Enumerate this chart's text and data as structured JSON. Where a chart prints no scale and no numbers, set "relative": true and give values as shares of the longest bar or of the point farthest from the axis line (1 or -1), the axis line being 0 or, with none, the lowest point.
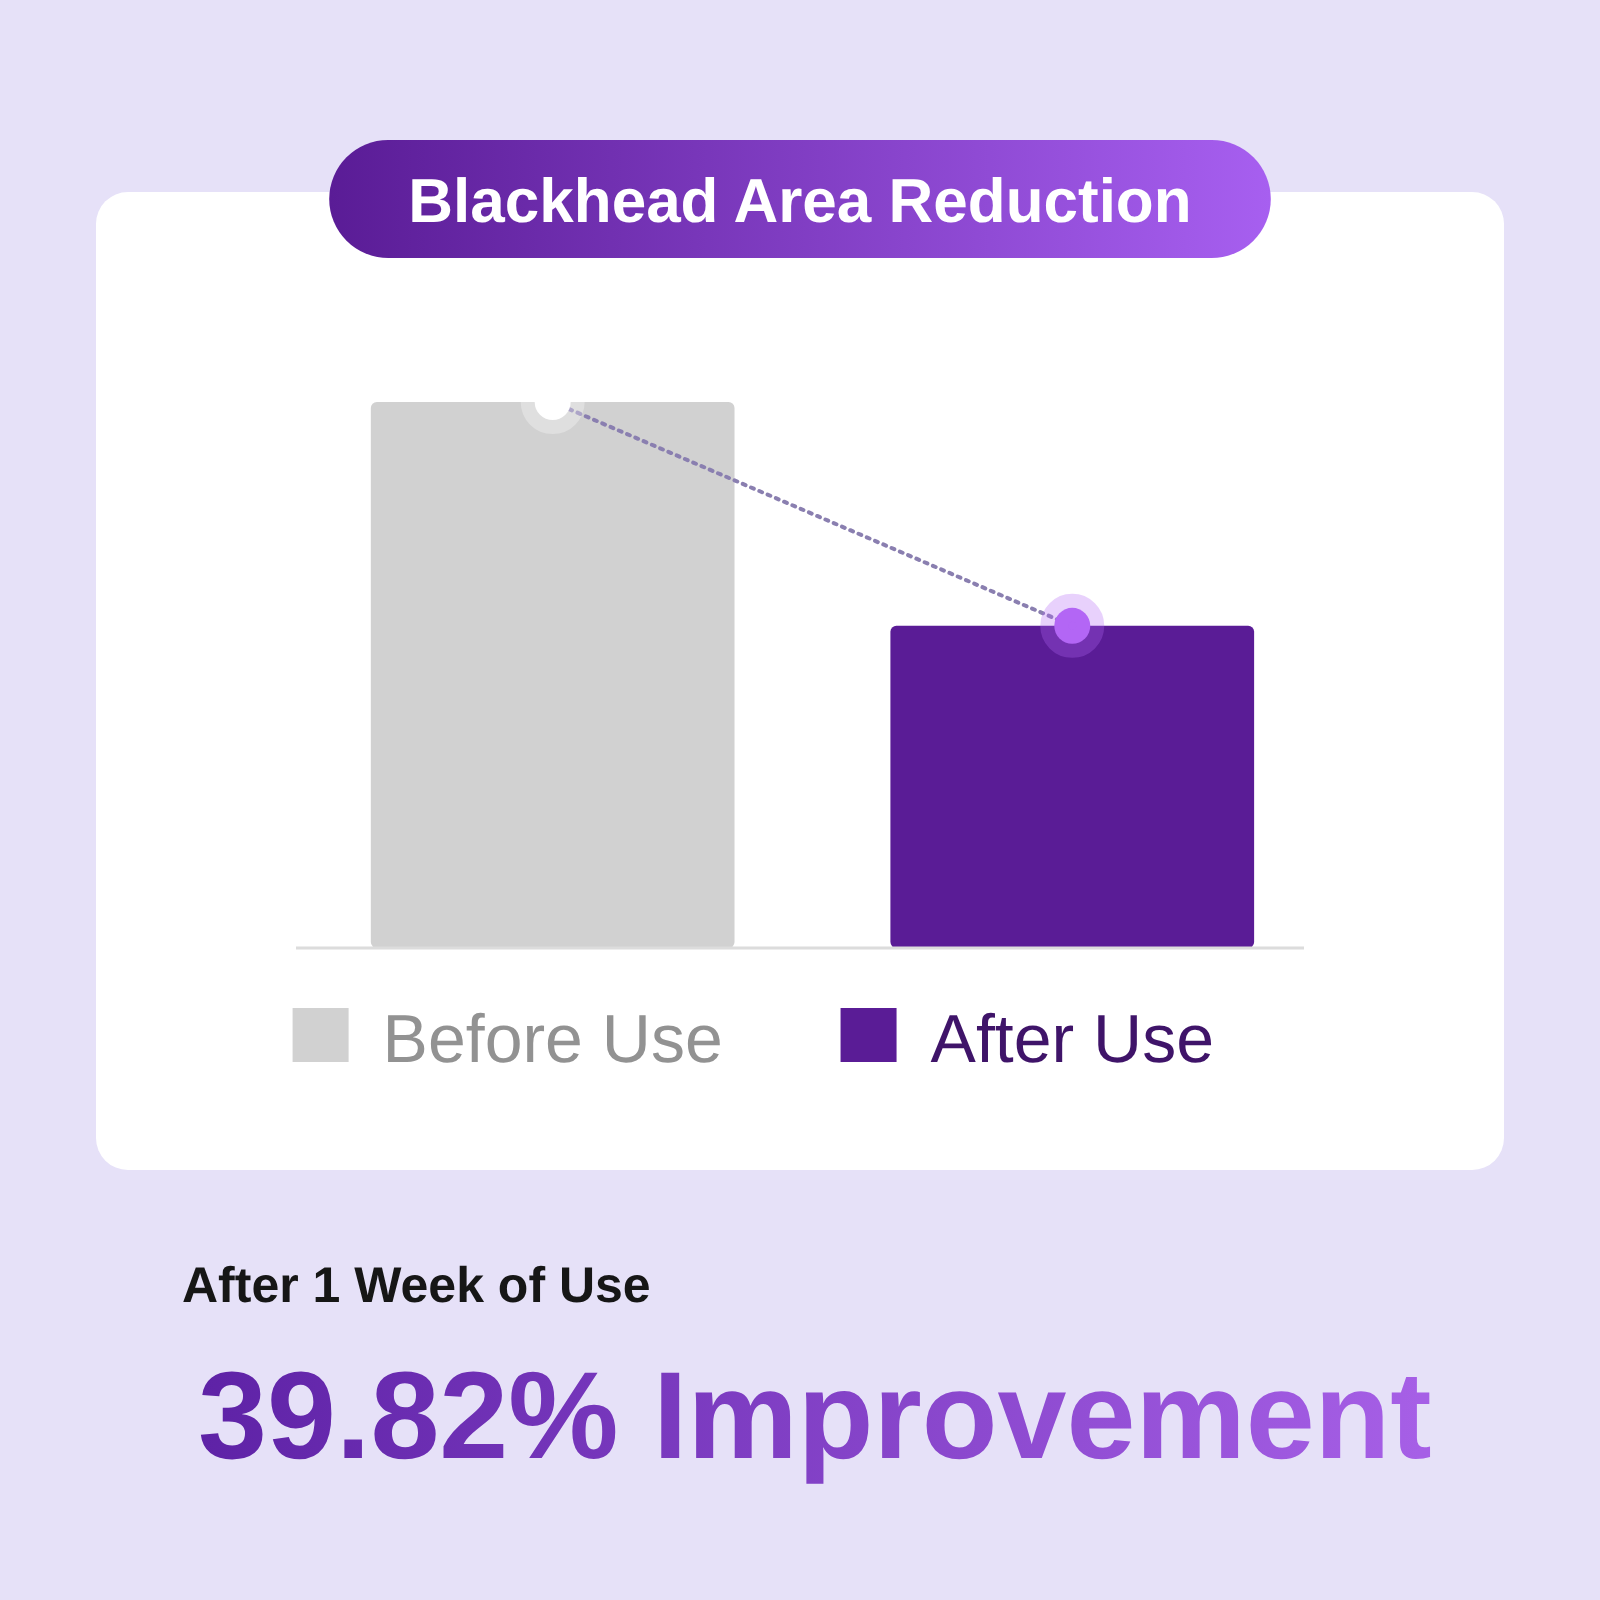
{
  "chart_data": {
    "type": "bar",
    "title": "Blackhead Area Reduction",
    "categories": [
      "Before Use",
      "After Use"
    ],
    "relative": true,
    "series": [
      {
        "colors": [
          "#d1d1d1",
          "#5a1c96"
        ],
        "values": [
          1,
          0.59
        ]
      },
      {
        "type": "line",
        "color": "#8a7fb0",
        "values": [
          1,
          0.59
        ],
        "colors": [
          "#ffffff",
          "#b366f5"
        ],
        "marker": "circle",
        "line_style": "dotted"
      }
    ],
    "annotations": [
      "After 1 Week of Use",
      "39.82% Improvement"
    ]
  }
}
